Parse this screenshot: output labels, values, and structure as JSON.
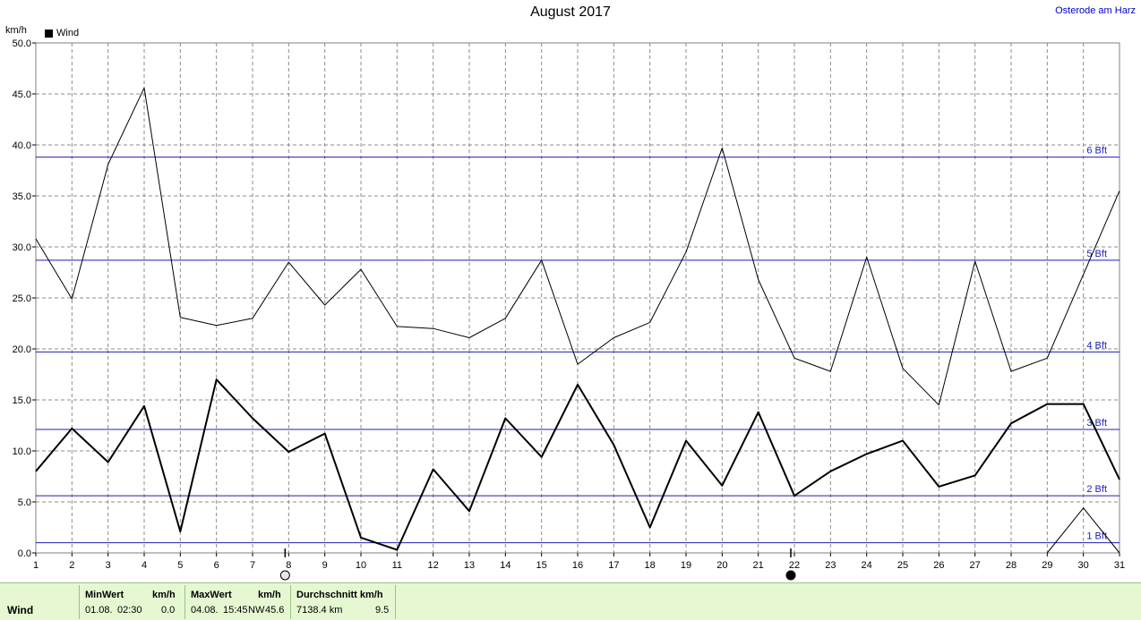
{
  "chart_data": {
    "type": "line",
    "title": "August 2017",
    "location": "Osterode am Harz",
    "unit": "km/h",
    "legend": [
      {
        "name": "Wind",
        "color": "#000000"
      }
    ],
    "x": [
      1,
      2,
      3,
      4,
      5,
      6,
      7,
      8,
      9,
      10,
      11,
      12,
      13,
      14,
      15,
      16,
      17,
      18,
      19,
      20,
      21,
      22,
      23,
      24,
      25,
      26,
      27,
      28,
      29,
      30,
      31
    ],
    "xlim": [
      1,
      31
    ],
    "ylim": [
      0,
      50
    ],
    "y_ticks": [
      "0.0",
      "5.0",
      "10.0",
      "15.0",
      "20.0",
      "25.0",
      "30.0",
      "35.0",
      "40.0",
      "45.0",
      "50.0"
    ],
    "grid": true,
    "series": [
      {
        "name": "Wind",
        "style": "thick",
        "values": [
          8.0,
          12.2,
          8.9,
          14.4,
          2.1,
          17.0,
          13.2,
          9.9,
          11.7,
          1.5,
          0.3,
          8.2,
          4.1,
          13.2,
          9.4,
          16.5,
          10.6,
          2.5,
          11.0,
          6.6,
          13.8,
          5.6,
          8.0,
          9.7,
          11.0,
          6.5,
          7.6,
          12.7,
          14.6,
          14.6,
          7.2
        ]
      },
      {
        "style": "thin",
        "values": [
          30.8,
          24.9,
          38.1,
          45.6,
          23.1,
          22.3,
          23.0,
          28.5,
          24.3,
          27.8,
          22.2,
          22.0,
          21.1,
          23.0,
          28.7,
          18.5,
          21.1,
          22.6,
          29.5,
          39.7,
          26.8,
          19.1,
          17.8,
          29.0,
          18.1,
          14.5,
          28.6,
          17.8,
          19.1,
          null,
          35.5
        ]
      },
      {
        "style": "thin",
        "values": [
          null,
          null,
          null,
          null,
          null,
          null,
          null,
          null,
          null,
          null,
          null,
          null,
          null,
          null,
          null,
          null,
          null,
          null,
          null,
          null,
          null,
          null,
          null,
          null,
          null,
          null,
          null,
          null,
          0.0,
          4.4,
          0.0
        ]
      }
    ],
    "thin_bridge": [
      29,
      19.1,
      31,
      35.5
    ],
    "beaufort_lines": [
      {
        "label": "1 Bft",
        "value": 1.0
      },
      {
        "label": "2 Bft",
        "value": 5.6
      },
      {
        "label": "3 Bft",
        "value": 12.1
      },
      {
        "label": "4 Bft",
        "value": 19.7
      },
      {
        "label": "5 Bft",
        "value": 28.7
      },
      {
        "label": "6 Bft",
        "value": 38.8
      }
    ],
    "moon_phases": [
      {
        "day": 8,
        "phase": "full-moon"
      },
      {
        "day": 22,
        "phase": "new-moon"
      }
    ]
  },
  "footer": {
    "label": "Wind",
    "min_header": "MinWert",
    "min_unit": "km/h",
    "min_date": "01.08.",
    "min_time": "02:30",
    "min_value": "0.0",
    "max_header": "MaxWert",
    "max_unit": "km/h",
    "max_date": "04.08.",
    "max_time": "15:45",
    "max_dir": "NW",
    "max_value": "45.6",
    "avg_header": "Durchschnitt km/h",
    "avg_distance": "7138.4 km",
    "avg_value": "9.5"
  }
}
